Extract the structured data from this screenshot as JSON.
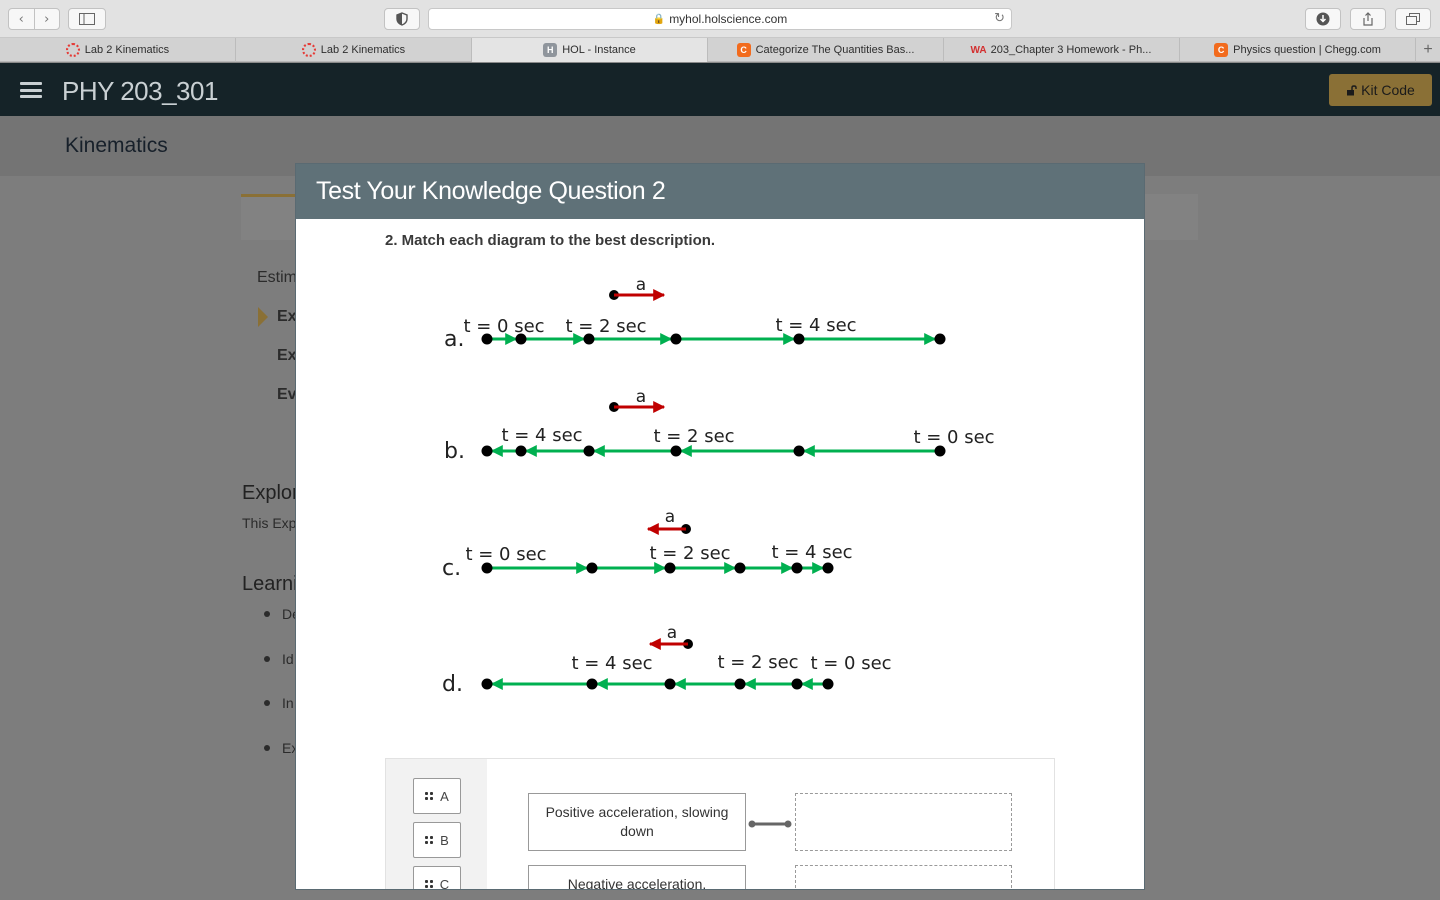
{
  "browser": {
    "url": "myhol.holscience.com",
    "tabs": [
      {
        "label": "Lab 2 Kinematics",
        "favicon": "ring"
      },
      {
        "label": "Lab 2 Kinematics",
        "favicon": "ring"
      },
      {
        "label": "HOL - Instance",
        "favicon": "h",
        "favicon_text": "H",
        "active": true
      },
      {
        "label": "Categorize The Quantities Bas...",
        "favicon": "c",
        "favicon_text": "C"
      },
      {
        "label": "203_Chapter 3 Homework - Ph...",
        "favicon": "wa",
        "favicon_text": "WA"
      },
      {
        "label": "Physics question | Chegg.com",
        "favicon": "c",
        "favicon_text": "C"
      }
    ],
    "new_tab": "+"
  },
  "header": {
    "course": "PHY 203_301",
    "kit_code": "Kit Code"
  },
  "page": {
    "section_title": "Kinematics",
    "nav_items": [
      "Estim",
      "Ex",
      "Ex",
      "Ev"
    ],
    "explore_heading": "Explor",
    "explore_text": "This Exp",
    "learning_heading": "Learni",
    "learning_items": [
      "De",
      "Id",
      "In",
      "Ex"
    ]
  },
  "modal": {
    "title": "Test Your Knowledge Question 2",
    "question": "2. Match each diagram to the best description.",
    "diagrams": [
      {
        "letter": "a.",
        "accel_label": "a",
        "accel_direction": "right",
        "labels": [
          "t = 0 sec",
          "t = 2 sec",
          "t = 4 sec"
        ]
      },
      {
        "letter": "b.",
        "accel_label": "a",
        "accel_direction": "right",
        "labels": [
          "t = 4 sec",
          "t = 2 sec",
          "t = 0 sec"
        ]
      },
      {
        "letter": "c.",
        "accel_label": "a",
        "accel_direction": "left",
        "labels": [
          "t = 0 sec",
          "t = 2 sec",
          "t = 4 sec"
        ]
      },
      {
        "letter": "d.",
        "accel_label": "a",
        "accel_direction": "left",
        "labels": [
          "t = 4 sec",
          "t = 2 sec",
          "t = 0 sec"
        ]
      }
    ],
    "choices": [
      "A",
      "B",
      "C"
    ],
    "descriptions": [
      "Positive acceleration, slowing down",
      "Negative acceleration,"
    ],
    "colors": {
      "velocity": "#00b050",
      "acceleration": "#c00000"
    }
  }
}
